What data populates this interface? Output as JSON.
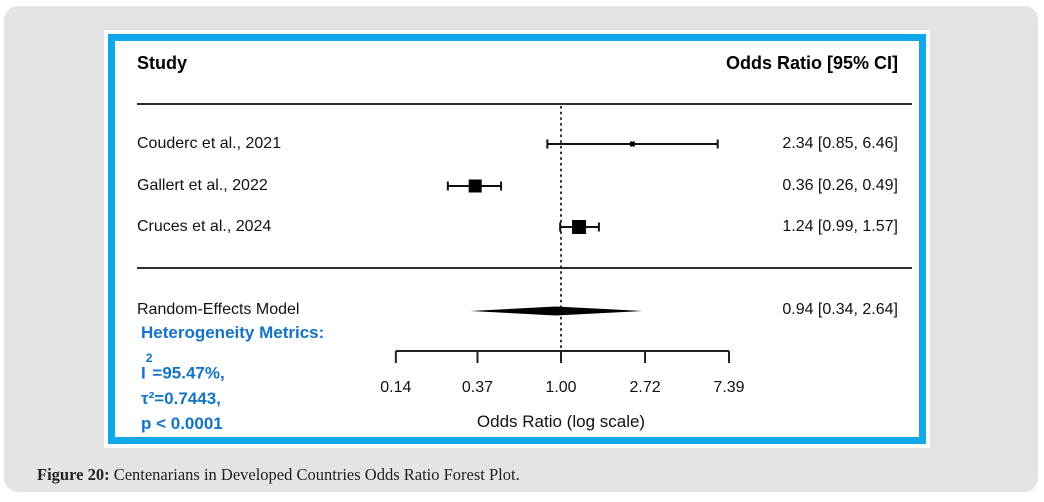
{
  "chart_data": {
    "type": "forest",
    "xlabel": "Odds Ratio (log scale)",
    "x_scale": "log",
    "x_ticks": [
      0.14,
      0.37,
      1.0,
      2.72,
      7.39
    ],
    "x_tick_labels": [
      "0.14",
      "0.37",
      "1.00",
      "2.72",
      "7.39"
    ],
    "reference_line": 1.0,
    "columns": {
      "study": "Study",
      "or_ci": "Odds Ratio [95% CI]"
    },
    "studies": [
      {
        "label": "Couderc et al., 2021",
        "or": 2.34,
        "ci_low": 0.85,
        "ci_high": 6.46,
        "estimate_text": "2.34 [0.85, 6.46]",
        "marker_px": 5
      },
      {
        "label": "Gallert et al., 2022",
        "or": 0.36,
        "ci_low": 0.26,
        "ci_high": 0.49,
        "estimate_text": "0.36 [0.26, 0.49]",
        "marker_px": 13
      },
      {
        "label": "Cruces et al., 2024",
        "or": 1.24,
        "ci_low": 0.99,
        "ci_high": 1.57,
        "estimate_text": "1.24 [0.99, 1.57]",
        "marker_px": 14
      }
    ],
    "summary": {
      "label": "Random-Effects Model",
      "or": 0.94,
      "ci_low": 0.34,
      "ci_high": 2.64,
      "estimate_text": "0.94 [0.34, 2.64]"
    },
    "heterogeneity": {
      "title": "Heterogeneity Metrics:",
      "i2_base": "I",
      "i2_sup": "2",
      "i2_rest": "=95.47%,",
      "tau2": "τ²=0.7443,",
      "p": "p < 0.0001"
    }
  },
  "caption": {
    "prefix": "Figure 20:",
    "text": " Centenarians in Developed Countries Odds Ratio Forest Plot."
  },
  "colors": {
    "accent_border": "#10a8e8",
    "card_bg": "#e4e4e4",
    "heterogeneity_text": "#1373c5",
    "ink": "#000000"
  }
}
